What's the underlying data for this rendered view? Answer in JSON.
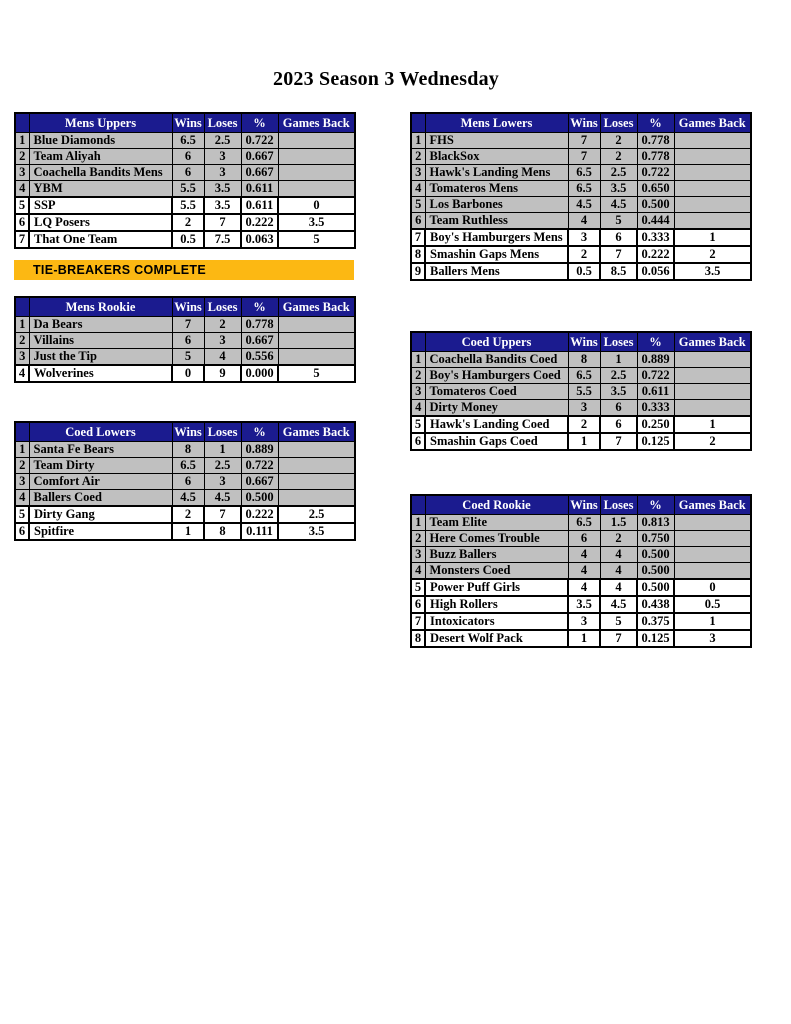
{
  "page_title": "2023 Season 3 Wednesday",
  "column_headers": [
    "Wins",
    "Loses",
    "%",
    "Games Back"
  ],
  "banner": {
    "text": "TIE-BREAKERS COMPLETE",
    "bg_color": "#fcb813"
  },
  "colors": {
    "header_bg": "#1b1b8f",
    "header_text": "#ffffff",
    "row_gray": "#c0c0c0",
    "row_white": "#ffffff",
    "border": "#000000",
    "banner_bg": "#fcb813"
  },
  "tables": [
    {
      "id": "mens-uppers",
      "title": "Mens Uppers",
      "rows": [
        {
          "rank": "1",
          "team": "Blue Diamonds",
          "wins": "6.5",
          "loses": "2.5",
          "pct": "0.722",
          "games_back": "",
          "highlight": false
        },
        {
          "rank": "2",
          "team": "Team Aliyah",
          "wins": "6",
          "loses": "3",
          "pct": "0.667",
          "games_back": "",
          "highlight": false
        },
        {
          "rank": "3",
          "team": "Coachella Bandits Mens",
          "wins": "6",
          "loses": "3",
          "pct": "0.667",
          "games_back": "",
          "highlight": false
        },
        {
          "rank": "4",
          "team": "YBM",
          "wins": "5.5",
          "loses": "3.5",
          "pct": "0.611",
          "games_back": "",
          "highlight": false
        },
        {
          "rank": "5",
          "team": "SSP",
          "wins": "5.5",
          "loses": "3.5",
          "pct": "0.611",
          "games_back": "0",
          "highlight": true
        },
        {
          "rank": "6",
          "team": "LQ Posers",
          "wins": "2",
          "loses": "7",
          "pct": "0.222",
          "games_back": "3.5",
          "highlight": true
        },
        {
          "rank": "7",
          "team": "That One Team",
          "wins": "0.5",
          "loses": "7.5",
          "pct": "0.063",
          "games_back": "5",
          "highlight": true
        }
      ]
    },
    {
      "id": "mens-lowers",
      "title": "Mens Lowers",
      "rows": [
        {
          "rank": "1",
          "team": "FHS",
          "wins": "7",
          "loses": "2",
          "pct": "0.778",
          "games_back": "",
          "highlight": false
        },
        {
          "rank": "2",
          "team": "BlackSox",
          "wins": "7",
          "loses": "2",
          "pct": "0.778",
          "games_back": "",
          "highlight": false
        },
        {
          "rank": "3",
          "team": "Hawk's Landing Mens",
          "wins": "6.5",
          "loses": "2.5",
          "pct": "0.722",
          "games_back": "",
          "highlight": false
        },
        {
          "rank": "4",
          "team": "Tomateros Mens",
          "wins": "6.5",
          "loses": "3.5",
          "pct": "0.650",
          "games_back": "",
          "highlight": false
        },
        {
          "rank": "5",
          "team": "Los Barbones",
          "wins": "4.5",
          "loses": "4.5",
          "pct": "0.500",
          "games_back": "",
          "highlight": false
        },
        {
          "rank": "6",
          "team": "Team Ruthless",
          "wins": "4",
          "loses": "5",
          "pct": "0.444",
          "games_back": "",
          "highlight": false
        },
        {
          "rank": "7",
          "team": "Boy's Hamburgers Mens",
          "wins": "3",
          "loses": "6",
          "pct": "0.333",
          "games_back": "1",
          "highlight": true
        },
        {
          "rank": "8",
          "team": "Smashin Gaps Mens",
          "wins": "2",
          "loses": "7",
          "pct": "0.222",
          "games_back": "2",
          "highlight": true
        },
        {
          "rank": "9",
          "team": "Ballers Mens",
          "wins": "0.5",
          "loses": "8.5",
          "pct": "0.056",
          "games_back": "3.5",
          "highlight": true
        }
      ]
    },
    {
      "id": "mens-rookie",
      "title": "Mens Rookie",
      "rows": [
        {
          "rank": "1",
          "team": "Da Bears",
          "wins": "7",
          "loses": "2",
          "pct": "0.778",
          "games_back": "",
          "highlight": false
        },
        {
          "rank": "2",
          "team": "Villains",
          "wins": "6",
          "loses": "3",
          "pct": "0.667",
          "games_back": "",
          "highlight": false
        },
        {
          "rank": "3",
          "team": "Just the Tip",
          "wins": "5",
          "loses": "4",
          "pct": "0.556",
          "games_back": "",
          "highlight": false
        },
        {
          "rank": "4",
          "team": "Wolverines",
          "wins": "0",
          "loses": "9",
          "pct": "0.000",
          "games_back": "5",
          "highlight": true
        }
      ]
    },
    {
      "id": "coed-uppers",
      "title": "Coed Uppers",
      "rows": [
        {
          "rank": "1",
          "team": "Coachella Bandits Coed",
          "wins": "8",
          "loses": "1",
          "pct": "0.889",
          "games_back": "",
          "highlight": false
        },
        {
          "rank": "2",
          "team": "Boy's Hamburgers Coed",
          "wins": "6.5",
          "loses": "2.5",
          "pct": "0.722",
          "games_back": "",
          "highlight": false
        },
        {
          "rank": "3",
          "team": "Tomateros Coed",
          "wins": "5.5",
          "loses": "3.5",
          "pct": "0.611",
          "games_back": "",
          "highlight": false
        },
        {
          "rank": "4",
          "team": "Dirty Money",
          "wins": "3",
          "loses": "6",
          "pct": "0.333",
          "games_back": "",
          "highlight": false
        },
        {
          "rank": "5",
          "team": "Hawk's Landing Coed",
          "wins": "2",
          "loses": "6",
          "pct": "0.250",
          "games_back": "1",
          "highlight": true
        },
        {
          "rank": "6",
          "team": "Smashin Gaps Coed",
          "wins": "1",
          "loses": "7",
          "pct": "0.125",
          "games_back": "2",
          "highlight": true
        }
      ]
    },
    {
      "id": "coed-lowers",
      "title": "Coed Lowers",
      "rows": [
        {
          "rank": "1",
          "team": "Santa Fe Bears",
          "wins": "8",
          "loses": "1",
          "pct": "0.889",
          "games_back": "",
          "highlight": false
        },
        {
          "rank": "2",
          "team": "Team Dirty",
          "wins": "6.5",
          "loses": "2.5",
          "pct": "0.722",
          "games_back": "",
          "highlight": false
        },
        {
          "rank": "3",
          "team": "Comfort Air",
          "wins": "6",
          "loses": "3",
          "pct": "0.667",
          "games_back": "",
          "highlight": false
        },
        {
          "rank": "4",
          "team": "Ballers Coed",
          "wins": "4.5",
          "loses": "4.5",
          "pct": "0.500",
          "games_back": "",
          "highlight": false
        },
        {
          "rank": "5",
          "team": "Dirty Gang",
          "wins": "2",
          "loses": "7",
          "pct": "0.222",
          "games_back": "2.5",
          "highlight": true
        },
        {
          "rank": "6",
          "team": "Spitfire",
          "wins": "1",
          "loses": "8",
          "pct": "0.111",
          "games_back": "3.5",
          "highlight": true
        }
      ]
    },
    {
      "id": "coed-rookie",
      "title": "Coed Rookie",
      "rows": [
        {
          "rank": "1",
          "team": "Team Elite",
          "wins": "6.5",
          "loses": "1.5",
          "pct": "0.813",
          "games_back": "",
          "highlight": false
        },
        {
          "rank": "2",
          "team": "Here Comes Trouble",
          "wins": "6",
          "loses": "2",
          "pct": "0.750",
          "games_back": "",
          "highlight": false
        },
        {
          "rank": "3",
          "team": "Buzz Ballers",
          "wins": "4",
          "loses": "4",
          "pct": "0.500",
          "games_back": "",
          "highlight": false
        },
        {
          "rank": "4",
          "team": "Monsters Coed",
          "wins": "4",
          "loses": "4",
          "pct": "0.500",
          "games_back": "",
          "highlight": false
        },
        {
          "rank": "5",
          "team": "Power Puff Girls",
          "wins": "4",
          "loses": "4",
          "pct": "0.500",
          "games_back": "0",
          "highlight": true
        },
        {
          "rank": "6",
          "team": "High Rollers",
          "wins": "3.5",
          "loses": "4.5",
          "pct": "0.438",
          "games_back": "0.5",
          "highlight": true
        },
        {
          "rank": "7",
          "team": "Intoxicators",
          "wins": "3",
          "loses": "5",
          "pct": "0.375",
          "games_back": "1",
          "highlight": true
        },
        {
          "rank": "8",
          "team": "Desert Wolf Pack",
          "wins": "1",
          "loses": "7",
          "pct": "0.125",
          "games_back": "3",
          "highlight": true
        }
      ]
    }
  ]
}
